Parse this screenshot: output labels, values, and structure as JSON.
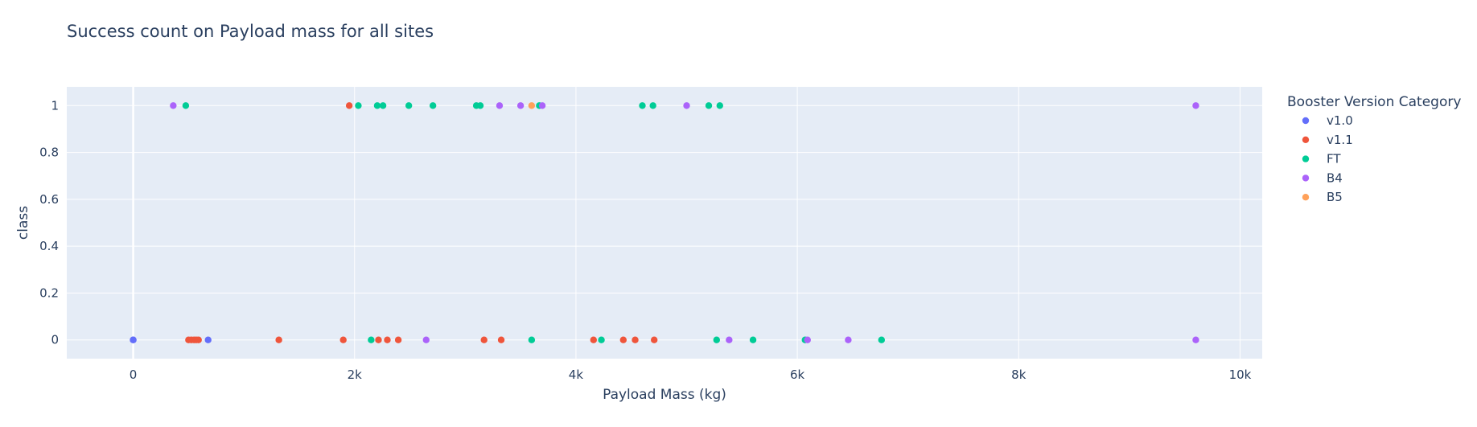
{
  "chart_data": {
    "type": "scatter",
    "title": "Success count on Payload mass for all sites",
    "xlabel": "Payload Mass (kg)",
    "ylabel": "class",
    "xlim": [
      -600,
      10200
    ],
    "ylim": [
      -0.08,
      1.08
    ],
    "x_ticks": [
      0,
      2000,
      4000,
      6000,
      8000,
      10000
    ],
    "x_tick_labels": [
      "0",
      "2k",
      "4k",
      "6k",
      "8k",
      "10k"
    ],
    "y_ticks": [
      0,
      0.2,
      0.4,
      0.6,
      0.8,
      1
    ],
    "y_tick_labels": [
      "0",
      "0.2",
      "0.4",
      "0.6",
      "0.8",
      "1"
    ],
    "grid": true,
    "legend": {
      "title": "Booster Version Category",
      "position": "right"
    },
    "series": [
      {
        "name": "v1.0",
        "color": "#636efa",
        "points": [
          [
            0,
            0
          ],
          [
            0,
            0
          ],
          [
            677,
            0
          ]
        ]
      },
      {
        "name": "v1.1",
        "color": "#ef553b",
        "points": [
          [
            500,
            0
          ],
          [
            525,
            0
          ],
          [
            550,
            0
          ],
          [
            570,
            0
          ],
          [
            590,
            0
          ],
          [
            1316,
            0
          ],
          [
            1898,
            0
          ],
          [
            1952,
            1
          ],
          [
            2216,
            0
          ],
          [
            2296,
            0
          ],
          [
            2395,
            0
          ],
          [
            3170,
            0
          ],
          [
            3325,
            0
          ],
          [
            4159,
            0
          ],
          [
            4428,
            0
          ],
          [
            4535,
            0
          ],
          [
            4707,
            0
          ]
        ]
      },
      {
        "name": "FT",
        "color": "#00cc96",
        "points": [
          [
            475,
            1
          ],
          [
            2034,
            1
          ],
          [
            2150,
            0
          ],
          [
            2205,
            1
          ],
          [
            2257,
            1
          ],
          [
            2490,
            1
          ],
          [
            2708,
            1
          ],
          [
            3100,
            1
          ],
          [
            3136,
            1
          ],
          [
            3600,
            0
          ],
          [
            3669,
            1
          ],
          [
            4230,
            0
          ],
          [
            4600,
            1
          ],
          [
            4696,
            1
          ],
          [
            5200,
            1
          ],
          [
            5271,
            0
          ],
          [
            5300,
            1
          ],
          [
            5600,
            0
          ],
          [
            6070,
            0
          ],
          [
            6761,
            0
          ]
        ]
      },
      {
        "name": "B4",
        "color": "#ab63fa",
        "points": [
          [
            362,
            1
          ],
          [
            2647,
            0
          ],
          [
            3310,
            1
          ],
          [
            3500,
            1
          ],
          [
            3696,
            1
          ],
          [
            5000,
            1
          ],
          [
            5384,
            0
          ],
          [
            6092,
            0
          ],
          [
            6460,
            0
          ],
          [
            9600,
            1
          ],
          [
            9600,
            0
          ]
        ]
      },
      {
        "name": "B5",
        "color": "#ffa15a",
        "points": [
          [
            3600,
            1
          ]
        ]
      }
    ]
  }
}
